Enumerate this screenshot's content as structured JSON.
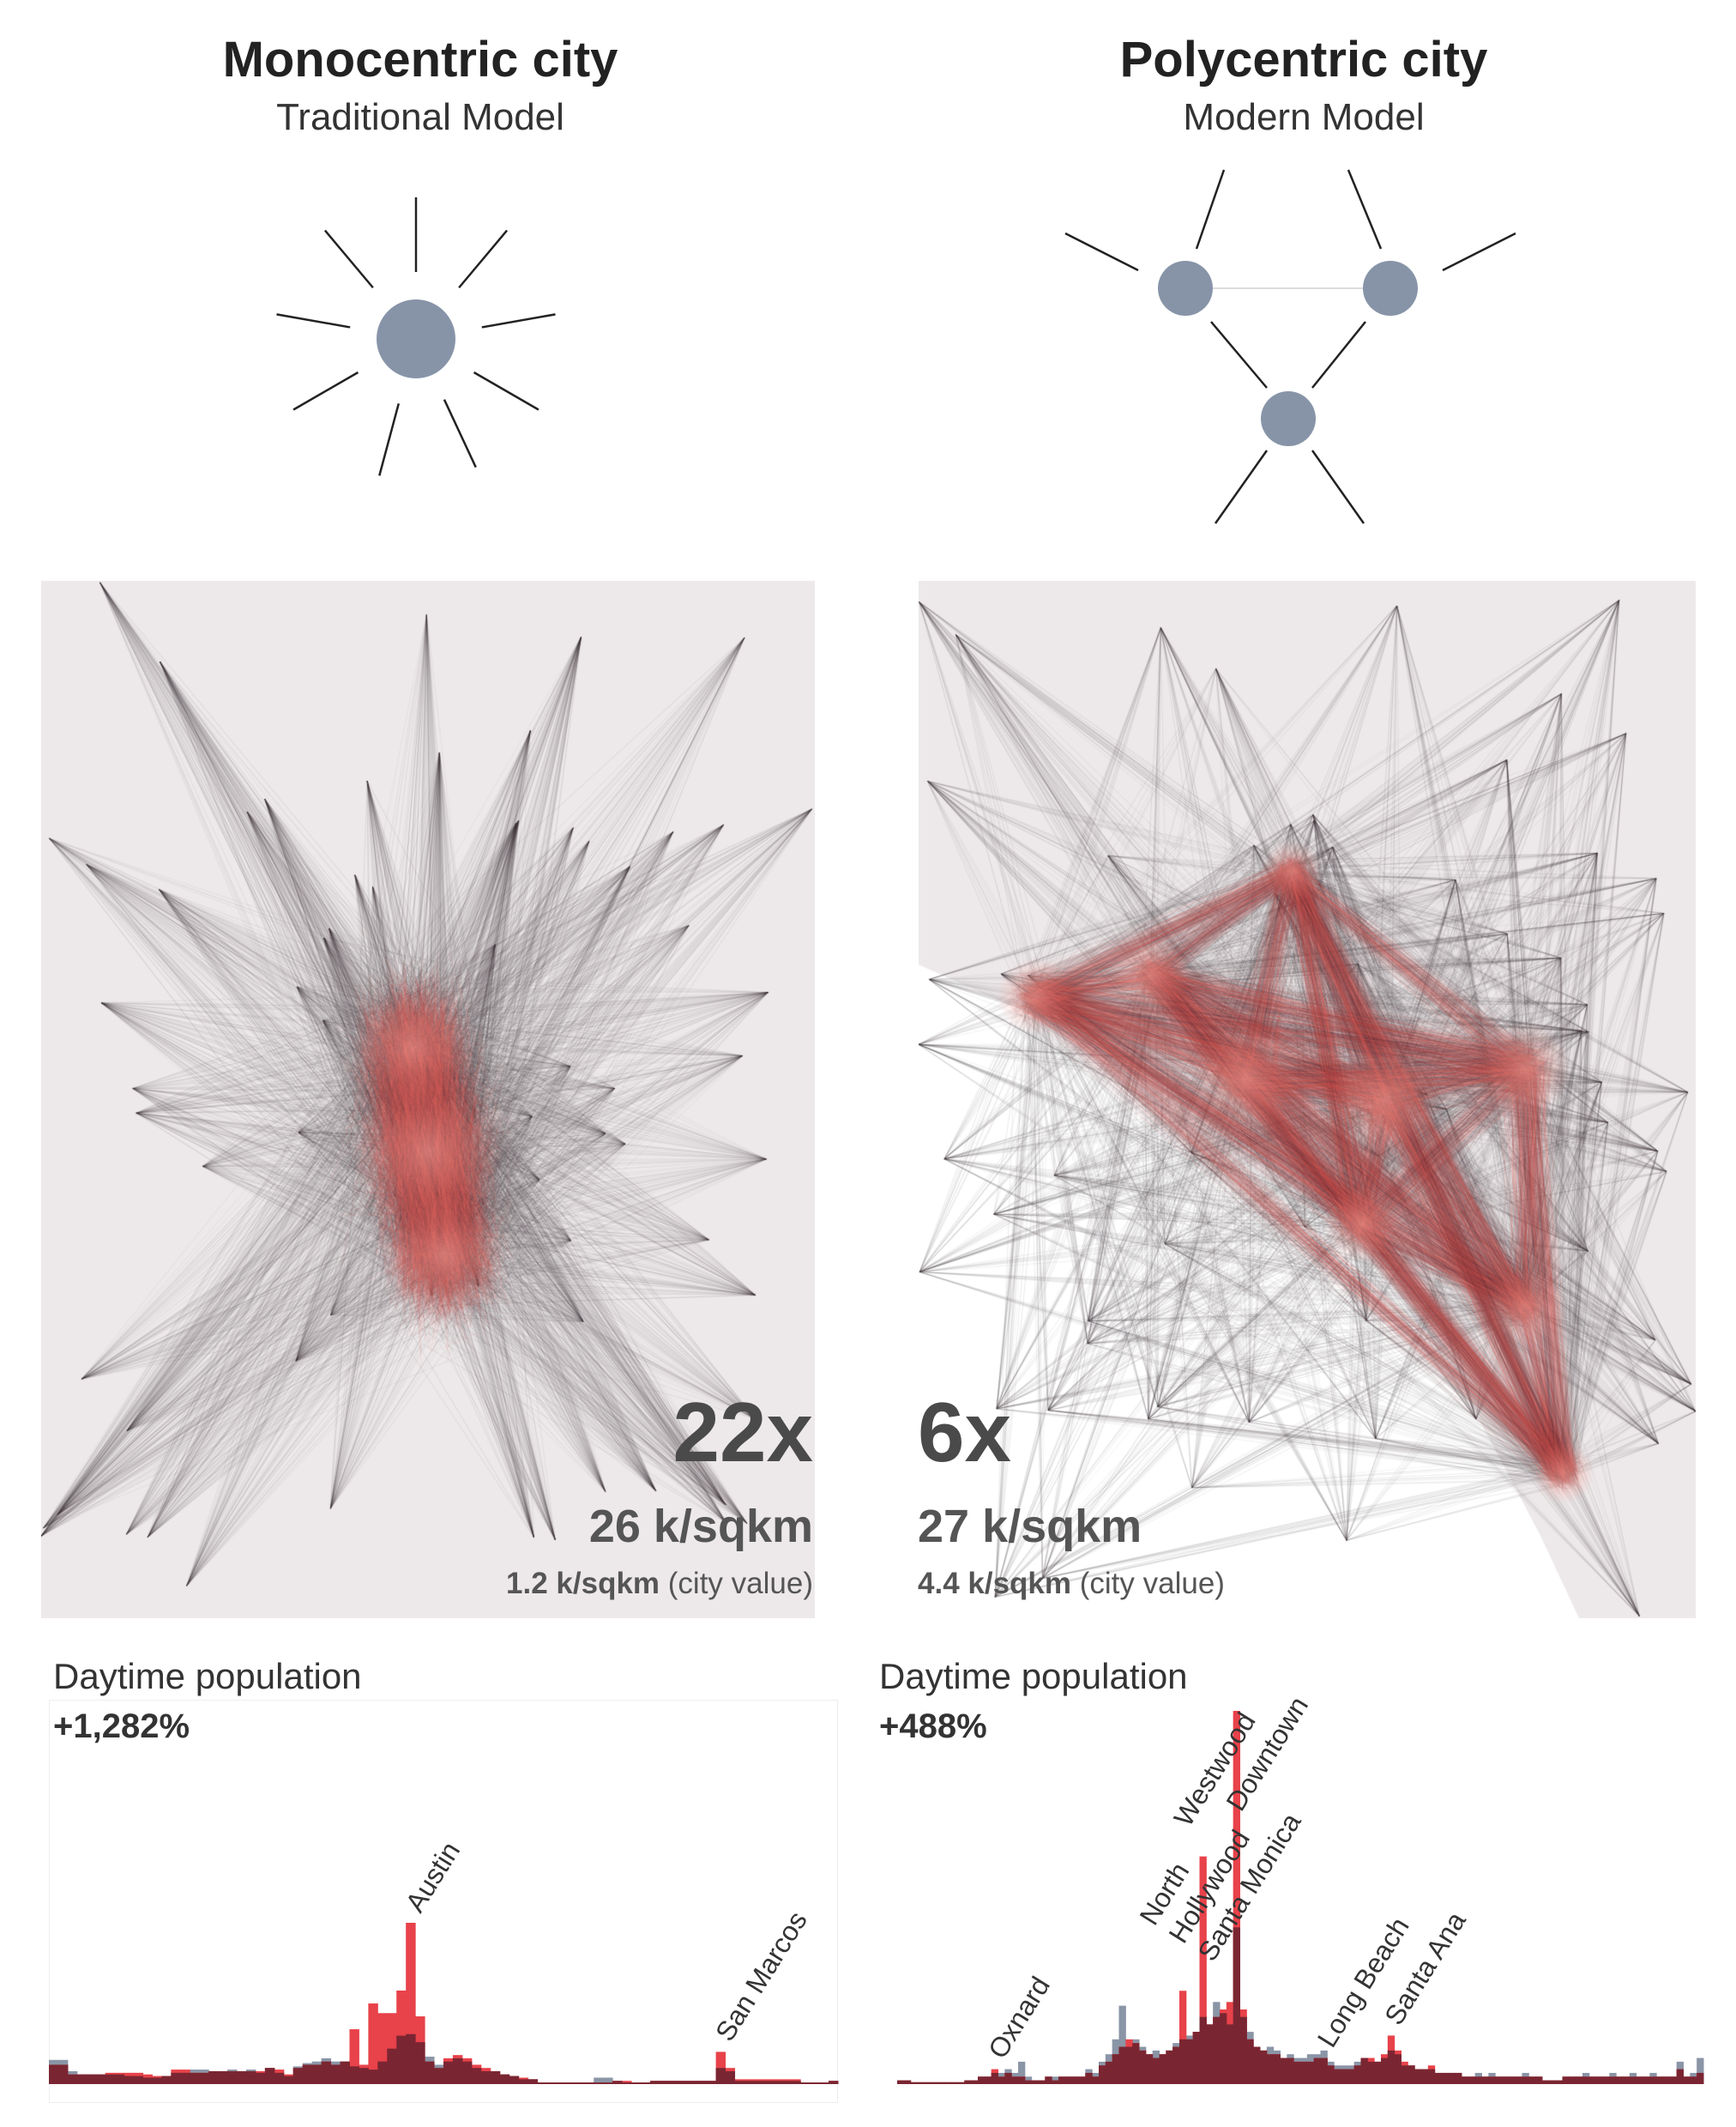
{
  "left": {
    "title": "Monocentric city",
    "subtitle": "Traditional Model",
    "multiplier": "22x",
    "density": "26 k/sqkm",
    "city_value": "1.2 k/sqkm",
    "city_value_note": "(city value)",
    "hist_title": "Daytime population",
    "hist_change": "+1,282%"
  },
  "right": {
    "title": "Polycentric city",
    "subtitle": "Modern Model",
    "multiplier": "6x",
    "density": "27 k/sqkm",
    "city_value": "4.4 k/sqkm",
    "city_value_note": "(city value)",
    "hist_title": "Daytime population",
    "hist_change": "+488%"
  },
  "colors": {
    "node": "#8794a8",
    "day": "#e8424a",
    "night": "#8a95a6",
    "overlap": "#7a2632",
    "flow": "#e86a66"
  },
  "chart_data": [
    {
      "type": "bar",
      "title": "Daytime population",
      "annotation": "+1,282%",
      "series": [
        {
          "color": "#e8424a",
          "values": [
            12,
            12,
            6,
            6,
            6,
            6,
            7,
            7,
            7,
            7,
            6,
            5,
            5,
            9,
            9,
            7,
            7,
            8,
            8,
            8,
            8,
            8,
            8,
            10,
            9,
            6,
            10,
            12,
            12,
            14,
            12,
            14,
            34,
            12,
            50,
            44,
            44,
            58,
            100,
            42,
            14,
            10,
            16,
            18,
            16,
            12,
            10,
            8,
            6,
            5,
            4,
            3,
            1,
            1,
            1,
            1,
            1,
            1,
            1,
            1,
            2,
            2,
            1,
            1,
            2,
            2,
            2,
            2,
            2,
            2,
            2,
            20,
            10,
            3,
            3,
            3,
            3,
            3,
            3,
            3,
            1,
            1,
            1,
            2
          ]
        },
        {
          "color": "#8a95a6",
          "values": [
            15,
            15,
            8,
            6,
            6,
            6,
            6,
            6,
            5,
            5,
            4,
            4,
            5,
            7,
            7,
            9,
            9,
            8,
            8,
            9,
            8,
            9,
            7,
            10,
            7,
            5,
            11,
            13,
            14,
            16,
            14,
            14,
            11,
            10,
            9,
            14,
            22,
            30,
            31,
            26,
            17,
            12,
            14,
            16,
            14,
            10,
            8,
            8,
            6,
            5,
            3,
            3,
            1,
            1,
            1,
            1,
            1,
            1,
            4,
            4,
            2,
            1,
            1,
            1,
            2,
            2,
            2,
            2,
            2,
            2,
            2,
            10,
            8,
            2,
            2,
            2,
            2,
            2,
            2,
            2,
            1,
            1,
            1,
            2
          ]
        }
      ],
      "annotations": [
        {
          "label": "Austin",
          "bin": 38
        },
        {
          "label": "San Marcos",
          "bin": 71
        }
      ]
    },
    {
      "type": "bar",
      "title": "Daytime population",
      "annotation": "+488%",
      "series": [
        {
          "color": "#e8424a",
          "values": [
            1,
            1,
            0.5,
            0.5,
            0.5,
            0.5,
            0.5,
            0.5,
            0.5,
            0.5,
            1,
            1,
            2,
            2,
            4,
            2,
            3,
            2,
            2,
            1,
            1,
            1,
            2,
            1,
            2,
            2,
            2,
            2,
            3,
            2,
            5,
            6,
            8,
            10,
            12,
            11,
            9,
            8,
            7,
            8,
            9,
            10,
            25,
            12,
            14,
            61,
            16,
            18,
            20,
            22,
            100,
            20,
            12,
            10,
            9,
            8,
            8,
            7,
            7,
            6,
            6,
            6,
            7,
            7,
            5,
            4,
            4,
            4,
            5,
            7,
            7,
            6,
            8,
            13,
            9,
            6,
            5,
            4,
            4,
            5,
            3,
            3,
            3,
            3,
            2,
            2,
            2,
            2,
            2,
            2,
            2,
            2,
            2,
            2,
            2,
            2,
            1,
            1,
            1,
            2,
            2,
            2,
            2,
            2,
            2,
            2,
            2,
            2,
            2,
            2,
            2,
            2,
            2,
            2,
            2,
            2,
            4,
            2,
            2,
            3
          ]
        },
        {
          "color": "#8a95a6",
          "values": [
            1,
            1,
            0.5,
            0.5,
            0.5,
            0.5,
            0.5,
            0.5,
            0.5,
            0.5,
            1,
            1,
            2,
            2,
            3,
            3,
            4,
            3,
            6,
            2,
            1,
            1,
            2,
            2,
            2,
            2,
            2,
            2,
            4,
            3,
            6,
            8,
            12,
            21,
            10,
            12,
            10,
            8,
            9,
            8,
            9,
            11,
            12,
            13,
            14,
            18,
            16,
            22,
            19,
            16,
            42,
            18,
            14,
            10,
            9,
            10,
            9,
            7,
            8,
            7,
            7,
            8,
            8,
            9,
            6,
            5,
            5,
            5,
            6,
            7,
            6,
            6,
            7,
            9,
            8,
            5,
            5,
            4,
            4,
            4,
            3,
            3,
            3,
            3,
            2,
            2,
            3,
            2,
            3,
            2,
            2,
            2,
            2,
            3,
            2,
            2,
            1,
            1,
            1,
            2,
            2,
            2,
            3,
            2,
            2,
            2,
            3,
            2,
            2,
            3,
            2,
            2,
            3,
            2,
            2,
            2,
            6,
            2,
            3,
            7
          ]
        }
      ],
      "annotations": [
        {
          "label": "Oxnard",
          "bin": 14
        },
        {
          "label": "North",
          "bin": 42
        },
        {
          "label": "Hollywood",
          "bin": 44
        },
        {
          "label": "Santa Monica",
          "bin": 42
        },
        {
          "label": "Westwood",
          "bin": 45
        },
        {
          "label": "Downtown",
          "bin": 50
        },
        {
          "label": "Long Beach",
          "bin": 63
        },
        {
          "label": "Santa Ana",
          "bin": 73
        }
      ]
    }
  ]
}
